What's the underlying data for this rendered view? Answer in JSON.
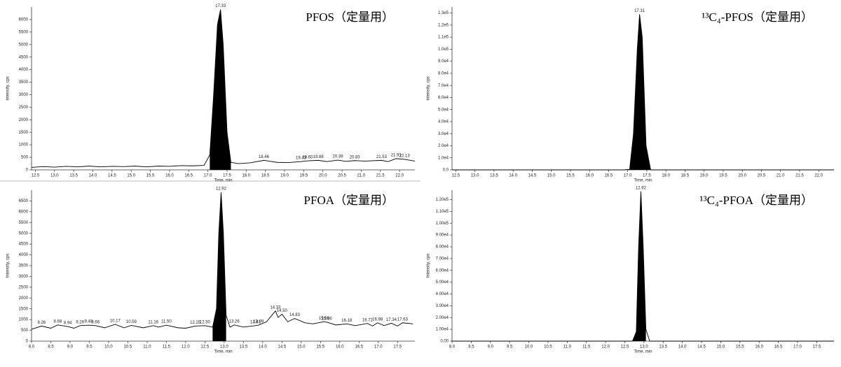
{
  "chart_data": [
    {
      "type": "line",
      "title": "PFOS（定量用）",
      "xlabel": "Time, min",
      "ylabel": "Intensity, cps",
      "color": "#000000",
      "xlim": [
        12.4,
        22.4
      ],
      "ylim": [
        0,
        6500
      ],
      "xticks": [
        12.5,
        {
          "value": 13,
          "label": "13.0"
        },
        13.5,
        {
          "value": 14,
          "label": "14.0"
        },
        14.5,
        {
          "value": 15,
          "label": "15.0"
        },
        15.5,
        {
          "value": 16,
          "label": "16.0"
        },
        16.5,
        {
          "value": 17,
          "label": "17.0"
        },
        17.5,
        {
          "value": 18,
          "label": "18.0"
        },
        18.5,
        {
          "value": 19,
          "label": "19.0"
        },
        19.5,
        {
          "value": 20,
          "label": "20.0"
        },
        20.5,
        {
          "value": 21,
          "label": "21.0"
        },
        21.5,
        {
          "value": 22,
          "label": "22.0"
        }
      ],
      "yticks": [
        0,
        500,
        1000,
        1500,
        2000,
        2500,
        3000,
        3500,
        4000,
        4500,
        5000,
        5500,
        6000
      ],
      "x": [
        12.4,
        12.7,
        13.0,
        13.3,
        13.6,
        13.9,
        14.2,
        14.5,
        14.8,
        15.1,
        15.4,
        15.7,
        16.0,
        16.3,
        16.6,
        16.9,
        17.05,
        17.15,
        17.25,
        17.33,
        17.4,
        17.5,
        17.6,
        17.8,
        18.1,
        18.46,
        18.8,
        19.1,
        19.43,
        19.6,
        19.88,
        20.1,
        20.39,
        20.6,
        20.83,
        21.1,
        21.53,
        21.7,
        21.91,
        22.13,
        22.4
      ],
      "values": [
        100,
        130,
        110,
        140,
        120,
        150,
        120,
        140,
        130,
        150,
        120,
        150,
        140,
        170,
        160,
        180,
        600,
        3000,
        5800,
        6400,
        5000,
        1500,
        300,
        250,
        280,
        380,
        300,
        290,
        330,
        360,
        380,
        330,
        390,
        340,
        370,
        350,
        380,
        330,
        450,
        420,
        350
      ],
      "fill_range": [
        17.0,
        17.65
      ],
      "annotations": [
        {
          "x": 17.33,
          "y": 6400,
          "label": "17.33"
        },
        {
          "x": 18.46,
          "y": 380,
          "label": "18.46"
        },
        {
          "x": 19.43,
          "y": 330,
          "label": "19.43"
        },
        {
          "x": 19.6,
          "y": 360,
          "label": "19.60"
        },
        {
          "x": 19.88,
          "y": 380,
          "label": "19.88"
        },
        {
          "x": 20.39,
          "y": 390,
          "label": "20.39"
        },
        {
          "x": 20.83,
          "y": 370,
          "label": "20.83"
        },
        {
          "x": 21.53,
          "y": 380,
          "label": "21.53"
        },
        {
          "x": 21.91,
          "y": 450,
          "label": "21.91"
        },
        {
          "x": 22.13,
          "y": 420,
          "label": "22.13"
        }
      ]
    },
    {
      "type": "line",
      "title": "¹³C₄-PFOS（定量用）",
      "xlabel": "Time, min",
      "ylabel": "Intensity, cps",
      "color": "#000000",
      "xlim": [
        12.4,
        22.4
      ],
      "ylim": [
        0,
        135000
      ],
      "xticks": [
        12.5,
        {
          "value": 13,
          "label": "13.0"
        },
        13.5,
        {
          "value": 14,
          "label": "14.0"
        },
        14.5,
        {
          "value": 15,
          "label": "15.0"
        },
        15.5,
        {
          "value": 16,
          "label": "16.0"
        },
        16.5,
        {
          "value": 17,
          "label": "17.0"
        },
        17.5,
        {
          "value": 18,
          "label": "18.0"
        },
        18.5,
        {
          "value": 19,
          "label": "19.0"
        },
        19.5,
        {
          "value": 20,
          "label": "20.0"
        },
        20.5,
        {
          "value": 21,
          "label": "21.0"
        },
        21.5,
        {
          "value": 22,
          "label": "22.0"
        }
      ],
      "yticks": [
        {
          "value": 0,
          "label": "0.0"
        },
        {
          "value": 10000,
          "label": "1.0e4"
        },
        {
          "value": 20000,
          "label": "2.0e4"
        },
        {
          "value": 30000,
          "label": "3.0e4"
        },
        {
          "value": 40000,
          "label": "4.0e4"
        },
        {
          "value": 50000,
          "label": "5.0e4"
        },
        {
          "value": 60000,
          "label": "6.0e4"
        },
        {
          "value": 70000,
          "label": "7.0e4"
        },
        {
          "value": 80000,
          "label": "8.0e4"
        },
        {
          "value": 90000,
          "label": "9.0e4"
        },
        {
          "value": 100000,
          "label": "1.0e5"
        },
        {
          "value": 110000,
          "label": "1.1e5"
        },
        {
          "value": 120000,
          "label": "1.2e5"
        },
        {
          "value": 130000,
          "label": "1.3e5"
        }
      ],
      "x": [
        12.4,
        16.9,
        17.05,
        17.15,
        17.25,
        17.31,
        17.38,
        17.48,
        17.6,
        22.4
      ],
      "values": [
        0,
        0,
        500,
        30000,
        100000,
        129000,
        110000,
        20000,
        0,
        0
      ],
      "fill_range": [
        17.0,
        17.65
      ],
      "annotations": [
        {
          "x": 17.31,
          "y": 129000,
          "label": "17.31"
        }
      ]
    },
    {
      "type": "line",
      "title": "PFOA（定量用）",
      "xlabel": "Time, min",
      "ylabel": "Intensity, cps",
      "color": "#000000",
      "xlim": [
        8.0,
        17.95
      ],
      "ylim": [
        0,
        7000
      ],
      "xticks": [
        {
          "value": 8,
          "label": "8.0"
        },
        8.5,
        {
          "value": 9,
          "label": "9.0"
        },
        9.5,
        {
          "value": 10,
          "label": "10.0"
        },
        10.5,
        {
          "value": 11,
          "label": "11.0"
        },
        11.5,
        {
          "value": 12,
          "label": "12.0"
        },
        12.5,
        {
          "value": 13,
          "label": "13.0"
        },
        13.5,
        {
          "value": 14,
          "label": "14.0"
        },
        14.5,
        {
          "value": 15,
          "label": "15.0"
        },
        15.5,
        {
          "value": 16,
          "label": "16.0"
        },
        16.5,
        {
          "value": 17,
          "label": "17.0"
        },
        17.5
      ],
      "yticks": [
        0,
        500,
        1000,
        1500,
        2000,
        2500,
        3000,
        3500,
        4000,
        4500,
        5000,
        5500,
        6000,
        6500
      ],
      "x": [
        8.0,
        8.26,
        8.5,
        8.68,
        8.94,
        9.1,
        9.26,
        9.48,
        9.66,
        9.9,
        10.17,
        10.4,
        10.59,
        10.9,
        11.16,
        11.3,
        11.5,
        11.8,
        12.0,
        12.25,
        12.5,
        12.7,
        12.8,
        12.86,
        12.92,
        12.98,
        13.05,
        13.15,
        13.26,
        13.5,
        13.81,
        13.89,
        14.1,
        14.33,
        14.4,
        14.5,
        14.65,
        14.83,
        15.1,
        15.3,
        15.59,
        15.66,
        15.9,
        16.18,
        16.4,
        16.72,
        16.85,
        16.98,
        17.15,
        17.34,
        17.5,
        17.63,
        17.9
      ],
      "values": [
        550,
        700,
        600,
        750,
        680,
        600,
        720,
        740,
        720,
        620,
        780,
        620,
        730,
        620,
        720,
        650,
        740,
        620,
        600,
        700,
        720,
        650,
        1500,
        5000,
        6900,
        5000,
        1200,
        650,
        750,
        650,
        720,
        740,
        900,
        1400,
        1100,
        1250,
        900,
        1050,
        850,
        800,
        900,
        880,
        750,
        800,
        720,
        820,
        700,
        850,
        720,
        830,
        700,
        850,
        800
      ],
      "fill_range": [
        12.7,
        13.1
      ],
      "annotations": [
        {
          "x": 8.26,
          "y": 700,
          "label": "8.26"
        },
        {
          "x": 8.68,
          "y": 750,
          "label": "8.68"
        },
        {
          "x": 8.94,
          "y": 680,
          "label": "8.94"
        },
        {
          "x": 9.26,
          "y": 720,
          "label": "9.26"
        },
        {
          "x": 9.48,
          "y": 740,
          "label": "9.48"
        },
        {
          "x": 9.66,
          "y": 720,
          "label": "9.66"
        },
        {
          "x": 10.17,
          "y": 780,
          "label": "10.17"
        },
        {
          "x": 10.59,
          "y": 730,
          "label": "10.59"
        },
        {
          "x": 11.16,
          "y": 720,
          "label": "11.16"
        },
        {
          "x": 11.5,
          "y": 740,
          "label": "11.50"
        },
        {
          "x": 12.25,
          "y": 700,
          "label": "12.25"
        },
        {
          "x": 12.5,
          "y": 720,
          "label": "12.50"
        },
        {
          "x": 12.92,
          "y": 6900,
          "label": "12.92"
        },
        {
          "x": 13.26,
          "y": 750,
          "label": "13.26"
        },
        {
          "x": 13.81,
          "y": 720,
          "label": "13.81"
        },
        {
          "x": 13.89,
          "y": 740,
          "label": "13.89"
        },
        {
          "x": 14.33,
          "y": 1400,
          "label": "14.33"
        },
        {
          "x": 14.5,
          "y": 1250,
          "label": "14.50"
        },
        {
          "x": 14.83,
          "y": 1050,
          "label": "14.83"
        },
        {
          "x": 15.59,
          "y": 900,
          "label": "15.59"
        },
        {
          "x": 15.66,
          "y": 880,
          "label": "15.66"
        },
        {
          "x": 16.18,
          "y": 800,
          "label": "16.18"
        },
        {
          "x": 16.72,
          "y": 820,
          "label": "16.72"
        },
        {
          "x": 16.98,
          "y": 850,
          "label": "16.98"
        },
        {
          "x": 17.34,
          "y": 830,
          "label": "17.34"
        },
        {
          "x": 17.63,
          "y": 850,
          "label": "17.63"
        }
      ]
    },
    {
      "type": "line",
      "title": "¹³C₄-PFOA（定量用）",
      "xlabel": "Time, min",
      "ylabel": "Intensity, cps",
      "color": "#000000",
      "xlim": [
        8.0,
        17.95
      ],
      "ylim": [
        0,
        128000
      ],
      "xticks": [
        {
          "value": 8,
          "label": "8.0"
        },
        8.5,
        {
          "value": 9,
          "label": "9.0"
        },
        9.5,
        {
          "value": 10,
          "label": "10.0"
        },
        10.5,
        {
          "value": 11,
          "label": "11.0"
        },
        11.5,
        {
          "value": 12,
          "label": "12.0"
        },
        12.5,
        {
          "value": 13,
          "label": "13.0"
        },
        13.5,
        {
          "value": 14,
          "label": "14.0"
        },
        14.5,
        {
          "value": 15,
          "label": "15.0"
        },
        15.5,
        {
          "value": 16,
          "label": "16.0"
        },
        16.5,
        {
          "value": 17,
          "label": "17.0"
        },
        17.5
      ],
      "yticks": [
        {
          "value": 0,
          "label": "0.00"
        },
        {
          "value": 10000,
          "label": "1.00e4"
        },
        {
          "value": 20000,
          "label": "2.00e4"
        },
        {
          "value": 30000,
          "label": "3.00e4"
        },
        {
          "value": 40000,
          "label": "4.00e4"
        },
        {
          "value": 50000,
          "label": "5.00e4"
        },
        {
          "value": 60000,
          "label": "6.00e4"
        },
        {
          "value": 70000,
          "label": "7.00e4"
        },
        {
          "value": 80000,
          "label": "8.00e4"
        },
        {
          "value": 90000,
          "label": "9.00e4"
        },
        {
          "value": 100000,
          "label": "1.00e5"
        },
        {
          "value": 110000,
          "label": "1.10e5"
        },
        {
          "value": 120000,
          "label": "1.20e5"
        }
      ],
      "x": [
        8.0,
        12.7,
        12.8,
        12.86,
        12.92,
        12.98,
        13.05,
        13.15,
        17.95
      ],
      "values": [
        0,
        0,
        8000,
        80000,
        127000,
        80000,
        10000,
        0,
        0
      ],
      "fill_range": [
        12.7,
        13.1
      ],
      "annotations": [
        {
          "x": 12.92,
          "y": 127000,
          "label": "12.92"
        }
      ]
    }
  ]
}
